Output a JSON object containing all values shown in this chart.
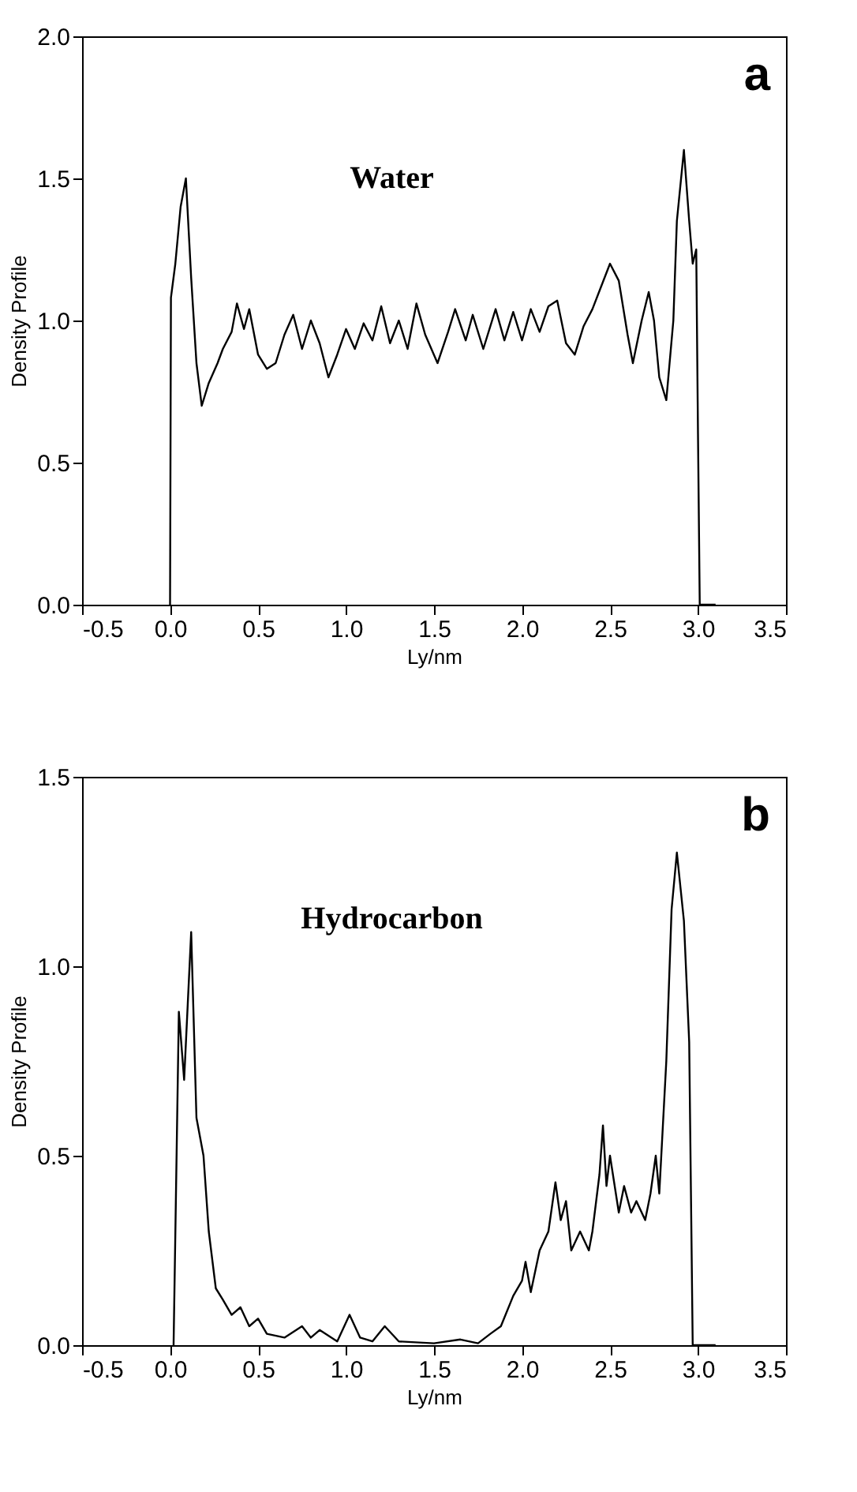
{
  "chart_data": [
    {
      "type": "line",
      "xlabel": "Ly/nm",
      "ylabel": "Density Profile",
      "annotations": [
        "a",
        "Water"
      ],
      "x": [
        0.0,
        0.005,
        0.03,
        0.06,
        0.09,
        0.12,
        0.15,
        0.18,
        0.22,
        0.27,
        0.3,
        0.35,
        0.38,
        0.42,
        0.45,
        0.5,
        0.55,
        0.6,
        0.65,
        0.7,
        0.75,
        0.8,
        0.85,
        0.9,
        0.95,
        1.0,
        1.05,
        1.1,
        1.15,
        1.2,
        1.25,
        1.3,
        1.35,
        1.4,
        1.45,
        1.52,
        1.58,
        1.62,
        1.68,
        1.72,
        1.78,
        1.85,
        1.9,
        1.95,
        2.0,
        2.05,
        2.1,
        2.15,
        2.2,
        2.25,
        2.3,
        2.35,
        2.4,
        2.45,
        2.5,
        2.55,
        2.6,
        2.63,
        2.68,
        2.72,
        2.75,
        2.78,
        2.82,
        2.86,
        2.88,
        2.92,
        2.95,
        2.97,
        2.99,
        3.0,
        3.01,
        3.1
      ],
      "series": [
        {
          "color": "#000000",
          "values": [
            0.0,
            1.08,
            1.2,
            1.4,
            1.5,
            1.15,
            0.85,
            0.7,
            0.78,
            0.85,
            0.9,
            0.96,
            1.06,
            0.97,
            1.04,
            0.88,
            0.83,
            0.85,
            0.95,
            1.02,
            0.9,
            1.0,
            0.92,
            0.8,
            0.88,
            0.97,
            0.9,
            0.99,
            0.93,
            1.05,
            0.92,
            1.0,
            0.9,
            1.06,
            0.95,
            0.85,
            0.96,
            1.04,
            0.93,
            1.02,
            0.9,
            1.04,
            0.93,
            1.03,
            0.93,
            1.04,
            0.96,
            1.05,
            1.07,
            0.92,
            0.88,
            0.98,
            1.04,
            1.12,
            1.2,
            1.14,
            0.95,
            0.85,
            1.0,
            1.1,
            1.0,
            0.8,
            0.72,
            1.0,
            1.35,
            1.6,
            1.35,
            1.2,
            1.25,
            0.6,
            0.0,
            0.0
          ]
        }
      ],
      "xlim": [
        -0.5,
        3.5
      ],
      "ylim": [
        0,
        2.0
      ],
      "xticks": [
        {
          "value": -0.5,
          "label": "-0.5"
        },
        {
          "value": 0,
          "label": "0.0"
        },
        {
          "value": 0.5,
          "label": "0.5"
        },
        {
          "value": 1,
          "label": "1.0"
        },
        {
          "value": 1.5,
          "label": "1.5"
        },
        {
          "value": 2,
          "label": "2.0"
        },
        {
          "value": 2.5,
          "label": "2.5"
        },
        {
          "value": 3,
          "label": "3.0"
        },
        {
          "value": 3.5,
          "label": "3.5"
        }
      ],
      "yticks": [
        {
          "value": 0,
          "label": "0.0"
        },
        {
          "value": 0.5,
          "label": "0.5"
        },
        {
          "value": 1,
          "label": "1.0"
        },
        {
          "value": 1.5,
          "label": "1.5"
        },
        {
          "value": 2,
          "label": "2.0"
        }
      ],
      "grid": false,
      "marker": "none",
      "line_style": "solid"
    },
    {
      "type": "line",
      "xlabel": "Ly/nm",
      "ylabel": "Density Profile",
      "annotations": [
        "b",
        "Hydrocarbon"
      ],
      "x": [
        0.02,
        0.05,
        0.08,
        0.12,
        0.15,
        0.19,
        0.22,
        0.26,
        0.3,
        0.35,
        0.4,
        0.45,
        0.5,
        0.55,
        0.65,
        0.75,
        0.8,
        0.85,
        0.95,
        1.02,
        1.08,
        1.15,
        1.22,
        1.3,
        1.5,
        1.65,
        1.75,
        1.82,
        1.88,
        1.95,
        2.0,
        2.02,
        2.05,
        2.1,
        2.15,
        2.19,
        2.22,
        2.25,
        2.28,
        2.33,
        2.38,
        2.4,
        2.44,
        2.46,
        2.48,
        2.5,
        2.55,
        2.58,
        2.62,
        2.65,
        2.7,
        2.73,
        2.76,
        2.78,
        2.82,
        2.85,
        2.88,
        2.92,
        2.95,
        2.97,
        3.1
      ],
      "series": [
        {
          "color": "#000000",
          "values": [
            0.0,
            0.88,
            0.7,
            1.09,
            0.6,
            0.5,
            0.3,
            0.15,
            0.12,
            0.08,
            0.1,
            0.05,
            0.07,
            0.03,
            0.02,
            0.05,
            0.02,
            0.04,
            0.01,
            0.08,
            0.02,
            0.01,
            0.05,
            0.01,
            0.005,
            0.015,
            0.005,
            0.03,
            0.05,
            0.13,
            0.17,
            0.22,
            0.14,
            0.25,
            0.3,
            0.43,
            0.33,
            0.38,
            0.25,
            0.3,
            0.25,
            0.3,
            0.45,
            0.58,
            0.42,
            0.5,
            0.35,
            0.42,
            0.35,
            0.38,
            0.33,
            0.4,
            0.5,
            0.4,
            0.75,
            1.15,
            1.3,
            1.12,
            0.8,
            0.0,
            0.0
          ]
        }
      ],
      "xlim": [
        -0.5,
        3.5
      ],
      "ylim": [
        0,
        1.5
      ],
      "xticks": [
        {
          "value": -0.5,
          "label": "-0.5"
        },
        {
          "value": 0,
          "label": "0.0"
        },
        {
          "value": 0.5,
          "label": "0.5"
        },
        {
          "value": 1,
          "label": "1.0"
        },
        {
          "value": 1.5,
          "label": "1.5"
        },
        {
          "value": 2,
          "label": "2.0"
        },
        {
          "value": 2.5,
          "label": "2.5"
        },
        {
          "value": 3,
          "label": "3.0"
        },
        {
          "value": 3.5,
          "label": "3.5"
        }
      ],
      "yticks": [
        {
          "value": 0,
          "label": "0.0"
        },
        {
          "value": 0.5,
          "label": "0.5"
        },
        {
          "value": 1,
          "label": "1.0"
        },
        {
          "value": 1.5,
          "label": "1.5"
        }
      ],
      "grid": false,
      "marker": "none",
      "line_style": "solid"
    }
  ]
}
